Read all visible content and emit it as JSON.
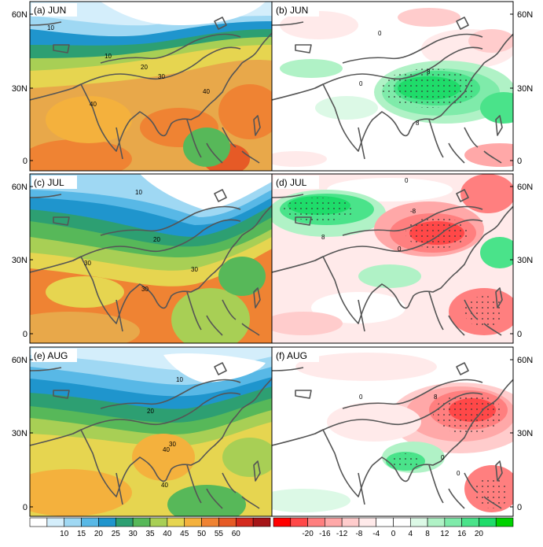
{
  "panels": [
    {
      "id": "a",
      "label": "(a) JUN",
      "side": "left",
      "row": 0,
      "contours": [
        {
          "t": "10"
        },
        {
          "t": "10"
        },
        {
          "t": "20"
        },
        {
          "t": "30"
        },
        {
          "t": "40"
        },
        {
          "t": "40"
        }
      ]
    },
    {
      "id": "b",
      "label": "(b) JUN",
      "side": "right",
      "row": 0,
      "contours": [
        {
          "t": "0"
        },
        {
          "t": "0"
        },
        {
          "t": "8"
        },
        {
          "t": "8"
        }
      ]
    },
    {
      "id": "c",
      "label": "(c) JUL",
      "side": "left",
      "row": 1,
      "contours": [
        {
          "t": "10"
        },
        {
          "t": "20"
        },
        {
          "t": "30"
        },
        {
          "t": "30"
        },
        {
          "t": "30"
        }
      ]
    },
    {
      "id": "d",
      "label": "(d) JUL",
      "side": "right",
      "row": 1,
      "contours": [
        {
          "t": "0"
        },
        {
          "t": "-8"
        },
        {
          "t": "8"
        },
        {
          "t": "0"
        }
      ]
    },
    {
      "id": "e",
      "label": "(e) AUG",
      "side": "left",
      "row": 2,
      "contours": [
        {
          "t": "10"
        },
        {
          "t": "20"
        },
        {
          "t": "30"
        },
        {
          "t": "40"
        },
        {
          "t": "40"
        }
      ]
    },
    {
      "id": "f",
      "label": "(f) AUG",
      "side": "right",
      "row": 2,
      "contours": [
        {
          "t": "0"
        },
        {
          "t": "8"
        },
        {
          "t": "0"
        },
        {
          "t": "0"
        }
      ]
    }
  ],
  "lat_labels": [
    "60N",
    "30N",
    "0"
  ],
  "colorbar_left": {
    "labels": [
      "10",
      "15",
      "20",
      "25",
      "30",
      "35",
      "40",
      "45",
      "50",
      "55",
      "60"
    ],
    "colors": [
      "#ffffff",
      "#d4eefb",
      "#9fd8f3",
      "#58b8e6",
      "#1f95cd",
      "#2d9f72",
      "#57b859",
      "#a8cf55",
      "#e6d550",
      "#f4b13d",
      "#ef8333",
      "#e65a26",
      "#d42a1e",
      "#a51518"
    ]
  },
  "colorbar_right": {
    "labels": [
      "-20",
      "-16",
      "-12",
      "-8",
      "-4",
      "0",
      "4",
      "8",
      "12",
      "16",
      "20"
    ],
    "colors": [
      "#ff0000",
      "#ff4848",
      "#ff7f7f",
      "#ffa8a8",
      "#ffcccc",
      "#ffeaea",
      "#ffffff",
      "#ffffff",
      "#dcf9e6",
      "#b0f2c6",
      "#7febaa",
      "#4ae38a",
      "#1fdc6a",
      "#00d200"
    ]
  }
}
